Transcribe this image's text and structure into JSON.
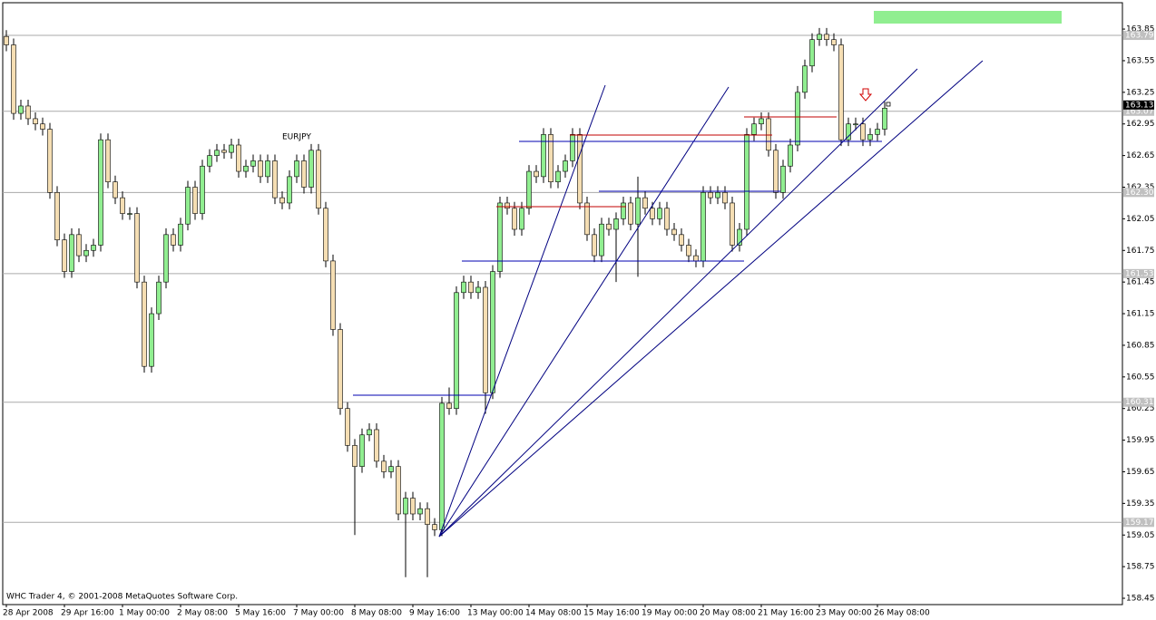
{
  "chart_data": {
    "type": "candlestick",
    "symbol": "EURJPY",
    "footer": "WHC Trader 4, © 2001-2008 MetaQuotes Software Corp.",
    "categories": [
      "28 Apr 2008",
      null,
      null,
      null,
      null,
      null,
      null,
      null,
      "29 Apr 16:00",
      null,
      null,
      null,
      null,
      null,
      null,
      null,
      "1 May 00:00",
      null,
      null,
      null,
      null,
      null,
      null,
      null,
      "2 May 08:00",
      null,
      null,
      null,
      null,
      null,
      null,
      null,
      "5 May 16:00",
      null,
      null,
      null,
      null,
      null,
      null,
      null,
      "7 May 00:00",
      null,
      null,
      null,
      null,
      null,
      null,
      null,
      "8 May 08:00",
      null,
      null,
      null,
      null,
      null,
      null,
      null,
      "9 May 16:00",
      null,
      null,
      null,
      null,
      null,
      null,
      null,
      "13 May 00:00",
      null,
      null,
      null,
      null,
      null,
      null,
      null,
      "14 May 08:00",
      null,
      null,
      null,
      null,
      null,
      null,
      null,
      "15 May 16:00",
      null,
      null,
      null,
      null,
      null,
      null,
      null,
      "19 May 00:00",
      null,
      null,
      null,
      null,
      null,
      null,
      null,
      "20 May 08:00",
      null,
      null,
      null,
      null,
      null,
      null,
      null,
      "21 May 16:00",
      null,
      null,
      null,
      null,
      null,
      null,
      null,
      "23 May 00:00",
      null,
      null,
      null,
      null,
      null,
      null,
      null,
      "26 May 08:00",
      null
    ],
    "open": [
      163.78,
      163.7,
      163.05,
      163.12,
      163.0,
      162.95,
      162.9,
      162.3,
      161.85,
      161.55,
      161.9,
      161.7,
      161.75,
      161.8,
      162.8,
      162.4,
      162.25,
      162.1,
      162.1,
      161.45,
      160.65,
      161.15,
      161.45,
      161.9,
      161.8,
      162.0,
      162.35,
      162.1,
      162.55,
      162.65,
      162.7,
      162.68,
      162.75,
      162.5,
      162.55,
      162.6,
      162.45,
      162.6,
      162.25,
      162.2,
      162.45,
      162.6,
      162.35,
      162.7,
      162.15,
      161.65,
      161.0,
      160.25,
      159.9,
      159.7,
      160.0,
      160.05,
      159.75,
      159.65,
      159.7,
      159.25,
      159.4,
      159.25,
      159.3,
      159.15,
      159.1,
      160.3,
      160.25,
      161.35,
      161.45,
      161.35,
      161.4,
      160.4,
      161.55,
      162.2,
      162.15,
      161.95,
      162.15,
      162.5,
      162.45,
      162.85,
      162.4,
      162.5,
      162.6,
      162.85,
      162.2,
      161.9,
      161.7,
      162.0,
      161.95,
      162.05,
      162.2,
      162.0,
      162.25,
      162.15,
      162.05,
      162.15,
      161.95,
      161.9,
      161.8,
      161.7,
      161.65,
      162.3,
      162.25,
      162.3,
      162.2,
      161.8,
      161.95,
      162.85,
      162.95,
      163.0,
      162.7,
      162.3,
      162.55,
      162.75,
      163.25,
      163.5,
      163.75,
      163.8,
      163.75,
      163.7,
      162.8,
      162.95,
      162.95,
      162.8,
      162.85,
      162.9
    ],
    "high": [
      163.84,
      163.76,
      163.18,
      163.18,
      163.06,
      163.01,
      162.96,
      162.36,
      161.91,
      161.96,
      161.96,
      161.81,
      161.86,
      162.86,
      162.86,
      162.46,
      162.31,
      162.16,
      162.16,
      161.51,
      161.21,
      161.51,
      161.96,
      161.96,
      162.06,
      162.41,
      162.41,
      162.61,
      162.71,
      162.76,
      162.76,
      162.81,
      162.81,
      162.61,
      162.66,
      162.66,
      162.66,
      162.66,
      162.31,
      162.51,
      162.66,
      162.66,
      162.76,
      162.76,
      162.21,
      161.71,
      161.06,
      160.31,
      159.96,
      160.06,
      160.11,
      160.11,
      159.81,
      159.76,
      159.76,
      159.46,
      159.46,
      159.36,
      159.36,
      159.21,
      160.36,
      160.45,
      161.41,
      161.51,
      161.51,
      161.46,
      161.46,
      161.61,
      162.26,
      162.26,
      162.21,
      162.21,
      162.56,
      162.56,
      162.91,
      162.91,
      162.56,
      162.66,
      162.91,
      162.91,
      162.26,
      161.96,
      162.06,
      162.06,
      162.11,
      162.26,
      162.26,
      162.45,
      162.31,
      162.21,
      162.21,
      162.21,
      162.01,
      161.96,
      161.86,
      161.76,
      162.36,
      162.36,
      162.36,
      162.36,
      162.26,
      162.01,
      162.91,
      163.01,
      163.06,
      163.06,
      162.76,
      162.61,
      162.81,
      163.31,
      163.56,
      163.81,
      163.86,
      163.86,
      163.81,
      163.76,
      163.01,
      163.01,
      163.01,
      162.91,
      162.96,
      163.16
    ],
    "low": [
      163.64,
      162.99,
      162.99,
      162.94,
      162.89,
      162.84,
      162.24,
      161.79,
      161.49,
      161.49,
      161.64,
      161.64,
      161.69,
      161.74,
      162.34,
      162.19,
      162.04,
      162.04,
      161.39,
      160.59,
      160.59,
      161.09,
      161.39,
      161.74,
      161.74,
      161.94,
      162.04,
      162.04,
      162.49,
      162.59,
      162.62,
      162.62,
      162.44,
      162.44,
      162.49,
      162.39,
      162.39,
      162.19,
      162.14,
      162.14,
      162.39,
      162.29,
      162.29,
      162.09,
      161.59,
      160.94,
      160.19,
      159.84,
      159.05,
      159.64,
      159.94,
      159.69,
      159.59,
      159.59,
      159.19,
      158.65,
      159.19,
      159.19,
      158.65,
      159.04,
      159.04,
      160.19,
      160.19,
      161.29,
      161.29,
      161.29,
      160.2,
      160.34,
      161.49,
      162.09,
      161.89,
      161.89,
      162.09,
      162.39,
      162.39,
      162.34,
      162.34,
      162.44,
      162.54,
      162.14,
      161.84,
      161.64,
      161.64,
      161.89,
      161.45,
      161.99,
      161.94,
      161.5,
      162.09,
      161.99,
      161.99,
      161.89,
      161.84,
      161.74,
      161.64,
      161.59,
      161.59,
      162.19,
      162.19,
      162.14,
      161.74,
      161.74,
      161.89,
      162.79,
      162.89,
      162.64,
      162.24,
      162.24,
      162.49,
      162.69,
      163.19,
      163.44,
      163.69,
      163.69,
      163.64,
      162.74,
      162.74,
      162.89,
      162.74,
      162.74,
      162.79,
      162.84
    ],
    "close": [
      163.7,
      163.05,
      163.12,
      163.0,
      162.95,
      162.9,
      162.3,
      161.85,
      161.55,
      161.9,
      161.7,
      161.75,
      161.8,
      162.8,
      162.4,
      162.25,
      162.1,
      162.1,
      161.45,
      160.65,
      161.15,
      161.45,
      161.9,
      161.8,
      162.0,
      162.35,
      162.1,
      162.55,
      162.65,
      162.7,
      162.68,
      162.75,
      162.5,
      162.55,
      162.6,
      162.45,
      162.6,
      162.25,
      162.2,
      162.45,
      162.6,
      162.35,
      162.7,
      162.15,
      161.65,
      161.0,
      160.25,
      159.9,
      159.7,
      160.0,
      160.05,
      159.75,
      159.65,
      159.7,
      159.25,
      159.4,
      159.25,
      159.3,
      159.15,
      159.1,
      160.3,
      160.25,
      161.35,
      161.45,
      161.35,
      161.4,
      160.4,
      161.55,
      162.2,
      162.15,
      161.95,
      162.15,
      162.5,
      162.45,
      162.85,
      162.4,
      162.5,
      162.6,
      162.85,
      162.2,
      161.9,
      161.7,
      162.0,
      161.95,
      162.05,
      162.2,
      162.0,
      162.25,
      162.15,
      162.05,
      162.15,
      161.95,
      161.9,
      161.8,
      161.7,
      161.65,
      162.3,
      162.25,
      162.3,
      162.2,
      161.8,
      161.95,
      162.85,
      162.95,
      163.0,
      162.7,
      162.3,
      162.55,
      162.75,
      163.25,
      163.5,
      163.75,
      163.8,
      163.75,
      163.7,
      162.8,
      162.95,
      162.95,
      162.8,
      162.85,
      162.9,
      163.1
    ],
    "up_color": "#90ee90",
    "down_color": "#f5deb3",
    "ylim": [
      158.39,
      164.1
    ],
    "yticks": [
      163.85,
      163.55,
      163.25,
      162.95,
      162.65,
      162.35,
      162.05,
      161.75,
      161.45,
      161.15,
      160.85,
      160.55,
      160.25,
      159.95,
      159.65,
      159.35,
      159.05,
      158.75,
      158.45
    ],
    "levels": [
      163.79,
      163.07,
      {
        "value": 162.3,
        "label": "162.30"
      },
      161.53,
      160.31,
      159.17
    ],
    "current_price": 163.13
  }
}
